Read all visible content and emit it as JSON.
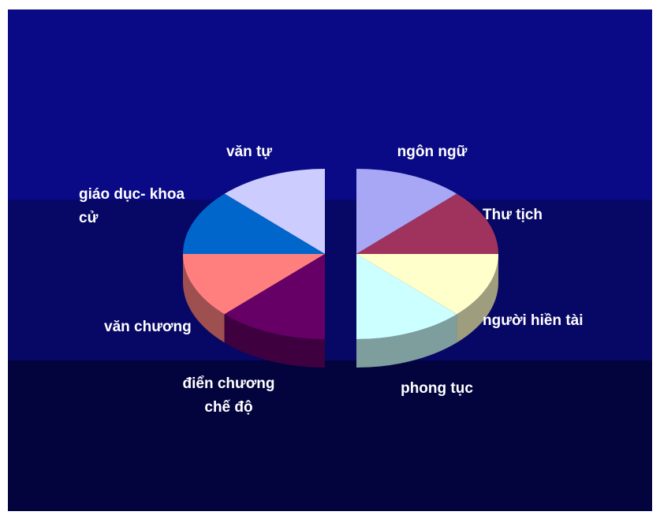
{
  "chart_data": {
    "type": "pie",
    "title": "",
    "categories": [
      "ngôn ngữ",
      "Thư tịch",
      "người hiền tài",
      "phong tục",
      "điển chương chế độ",
      "văn chương",
      "giáo dục- khoa cử",
      "văn tự"
    ],
    "values": [
      12.5,
      12.5,
      12.5,
      12.5,
      12.5,
      12.5,
      12.5,
      12.5
    ],
    "colors": [
      "#a7a7f5",
      "#a0335e",
      "#ffffcc",
      "#ccffff",
      "#660066",
      "#ff7f7f",
      "#0066cc",
      "#ccccff"
    ],
    "exploded_halves": true,
    "legend": "labels around slices"
  },
  "labels": [
    [
      "ngôn ngữ"
    ],
    [
      "Thư tịch"
    ],
    [
      "người hiền tài"
    ],
    [
      "phong tục"
    ],
    [
      "điển chương",
      "chế độ"
    ],
    [
      "văn chương"
    ],
    [
      "giáo dục- khoa",
      "cử"
    ],
    [
      "văn tự"
    ]
  ]
}
